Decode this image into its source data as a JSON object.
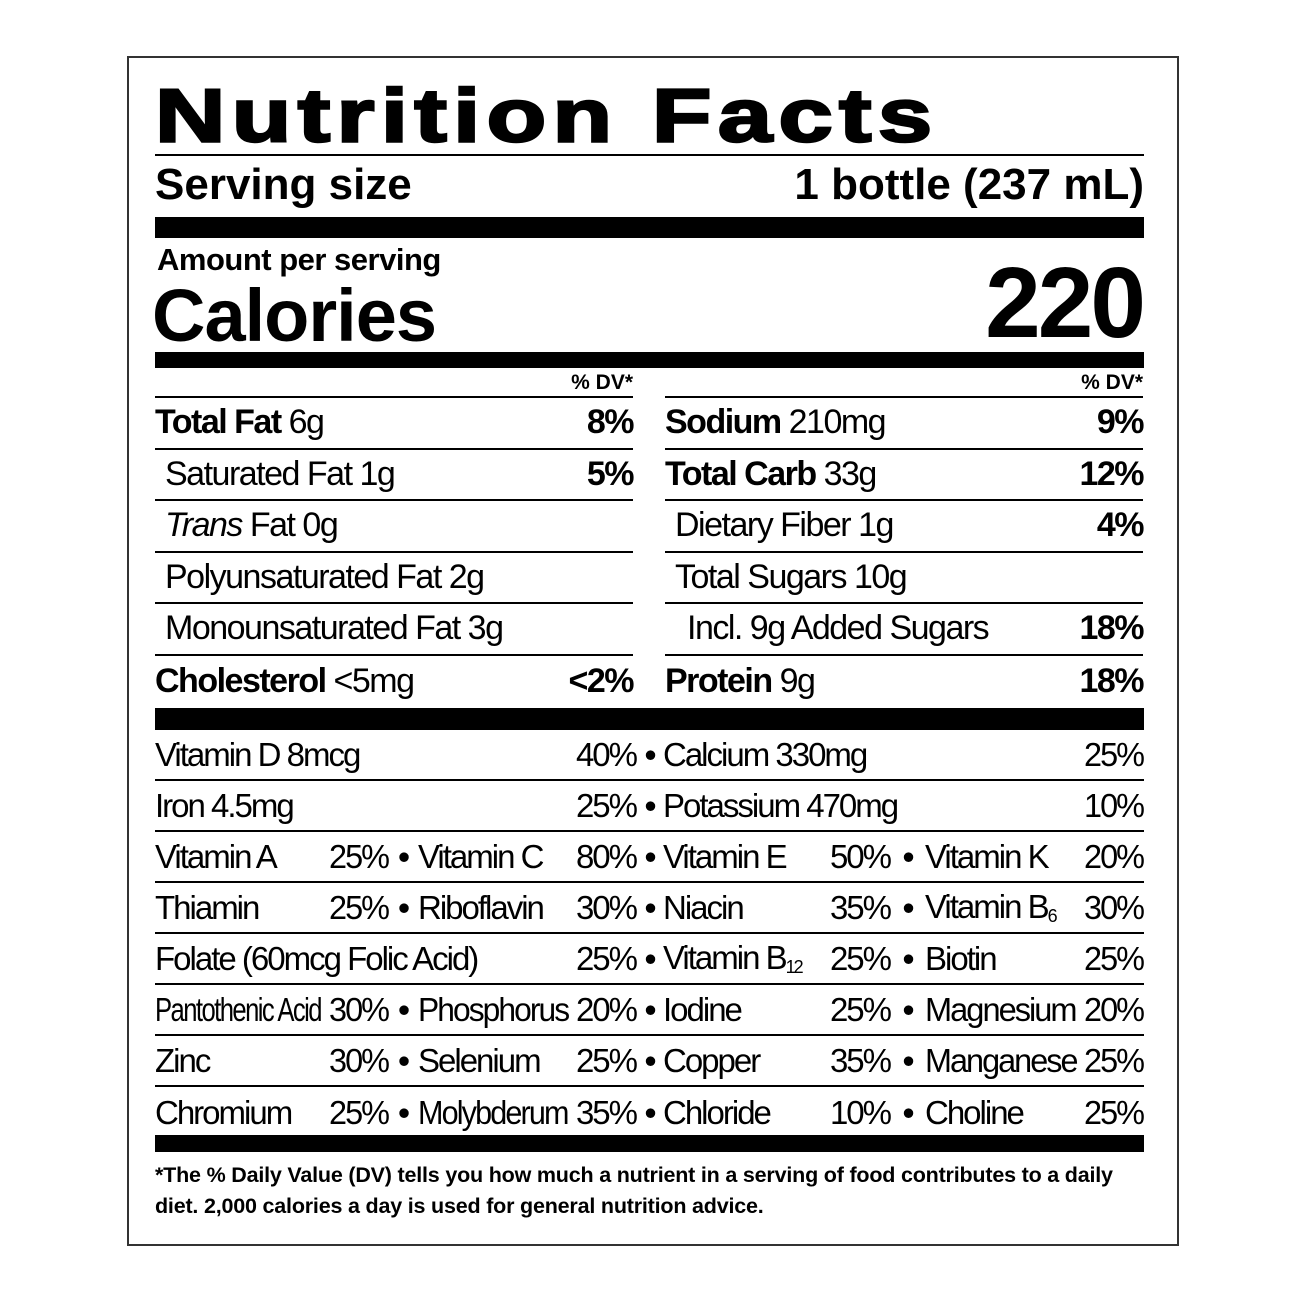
{
  "title": "Nutrition Facts",
  "serving": {
    "label": "Serving size",
    "value": "1 bottle (237 mL)"
  },
  "amount_per_serving": "Amount per serving",
  "calories": {
    "label": "Calories",
    "value": "220"
  },
  "dv_header": "% DV*",
  "left_nutrients": [
    {
      "label": "Total Fat",
      "amount": "6g",
      "dv": "8%",
      "bold": true,
      "indent": 0
    },
    {
      "label": "Saturated Fat",
      "amount": "1g",
      "dv": "5%",
      "indent": 1
    },
    {
      "italic": "Trans",
      "label": " Fat",
      "amount": "0g",
      "dv": "",
      "indent": 1
    },
    {
      "label": "Polyunsaturated Fat",
      "amount": "2g",
      "dv": "",
      "indent": 1
    },
    {
      "label": "Monounsaturated Fat",
      "amount": "3g",
      "dv": "",
      "indent": 1
    },
    {
      "label": "Cholesterol",
      "amount": "<5mg",
      "dv": "<2%",
      "bold": true,
      "indent": 0
    }
  ],
  "right_nutrients": [
    {
      "label": "Sodium",
      "amount": "210mg",
      "dv": "9%",
      "bold": true,
      "indent": 0
    },
    {
      "label": "Total Carb",
      "amount": "33g",
      "dv": "12%",
      "bold": true,
      "indent": 0
    },
    {
      "label": "Dietary Fiber",
      "amount": "1g",
      "dv": "4%",
      "indent": 1
    },
    {
      "label": "Total Sugars",
      "amount": "10g",
      "dv": "",
      "indent": 1
    },
    {
      "label": "Incl. 9g Added Sugars",
      "amount": "",
      "dv": "18%",
      "indent": 2
    },
    {
      "label": "Protein",
      "amount": "9g",
      "dv": "18%",
      "bold": true,
      "indent": 0
    }
  ],
  "micronutrients": [
    {
      "wide": true,
      "items": [
        {
          "name": "Vitamin D 8mcg",
          "pct": "40%"
        },
        {
          "name": "Calcium 330mg",
          "pct": "25%"
        }
      ]
    },
    {
      "wide": true,
      "items": [
        {
          "name": "Iron 4.5mg",
          "pct": "25%"
        },
        {
          "name": "Potassium 470mg",
          "pct": "10%"
        }
      ]
    },
    {
      "items": [
        {
          "name": "Vitamin A",
          "pct": "25%"
        },
        {
          "name": "Vitamin C",
          "pct": "80%"
        },
        {
          "name": "Vitamin E",
          "pct": "50%"
        },
        {
          "name": "Vitamin K",
          "pct": "20%"
        }
      ]
    },
    {
      "items": [
        {
          "name": "Thiamin",
          "pct": "25%"
        },
        {
          "name": "Riboflavin",
          "pct": "30%"
        },
        {
          "name": "Niacin",
          "pct": "35%"
        },
        {
          "name": "Vitamin B",
          "sub": "6",
          "pct": "30%"
        }
      ]
    },
    {
      "folate": true,
      "items": [
        {
          "name": "Folate (60mcg Folic Acid)",
          "pct": "25%"
        },
        {
          "name": "Vitamin B",
          "sub": "12",
          "pct": "25%"
        },
        {
          "name": "Biotin",
          "pct": "25%"
        }
      ]
    },
    {
      "items": [
        {
          "name": "Pantothenic Acid",
          "pct": "30%"
        },
        {
          "name": "Phosphorus",
          "pct": "20%"
        },
        {
          "name": "Iodine",
          "pct": "25%"
        },
        {
          "name": "Magnesium",
          "pct": "20%"
        }
      ]
    },
    {
      "items": [
        {
          "name": "Zinc",
          "pct": "30%"
        },
        {
          "name": "Selenium",
          "pct": "25%"
        },
        {
          "name": "Copper",
          "pct": "35%"
        },
        {
          "name": "Manganese",
          "pct": "25%"
        }
      ]
    },
    {
      "items": [
        {
          "name": "Chromium",
          "pct": "25%"
        },
        {
          "name": "Molybderum",
          "pct": "35%"
        },
        {
          "name": "Chloride",
          "pct": "10%"
        },
        {
          "name": "Choline",
          "pct": "25%"
        }
      ]
    }
  ],
  "bullet": "•",
  "footnote": "*The % Daily Value (DV) tells you how much a nutrient in a serving of food contributes to a daily diet. 2,000 calories a day is used for general nutrition advice."
}
